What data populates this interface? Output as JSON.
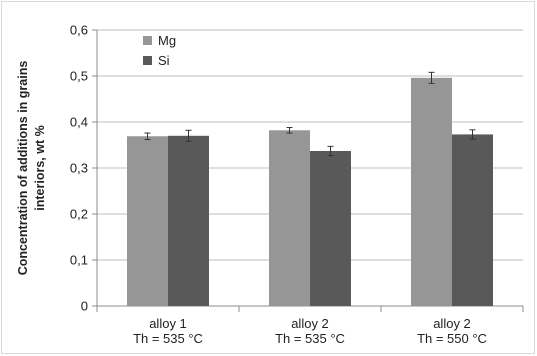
{
  "chart_data": {
    "type": "bar",
    "title": "",
    "xlabel": "",
    "ylabel": [
      "Concentration of additions  in  grains",
      "interiors, wt %"
    ],
    "ylim": [
      0,
      0.6
    ],
    "yticks": [
      "0",
      "0,1",
      "0,2",
      "0,3",
      "0,4",
      "0,5",
      "0,6"
    ],
    "grid": "horizontal",
    "legend_position": "top-left",
    "categories": [
      [
        "alloy 1",
        "Th = 535 °C"
      ],
      [
        "alloy 2",
        "Th = 535 °C"
      ],
      [
        "alloy 2",
        "Th =  550 °C"
      ]
    ],
    "series": [
      {
        "name": "Mg",
        "color": "#969696",
        "values": [
          0.369,
          0.382,
          0.496
        ],
        "errors": [
          0.007,
          0.006,
          0.012
        ]
      },
      {
        "name": "Si",
        "color": "#595959",
        "values": [
          0.37,
          0.337,
          0.373
        ],
        "errors": [
          0.012,
          0.01,
          0.01
        ]
      }
    ]
  }
}
